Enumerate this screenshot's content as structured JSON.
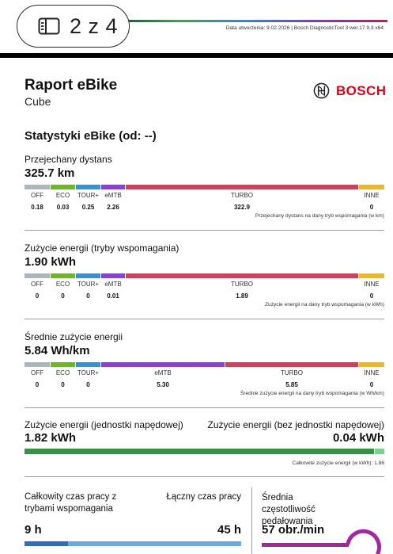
{
  "viewer": {
    "page_indicator": "2 z 4",
    "pages_icon": "sidebar-pages-icon"
  },
  "header": {
    "meta": "Data utworzenia: 9.02.2026 | Bosch DiagnosticTool 3 wer.17.9.3 x64"
  },
  "report": {
    "title": "Raport eBike",
    "subtitle": "Cube",
    "brand": "BOSCH",
    "brand_logo_icon": "bosch-armature-logo-icon"
  },
  "section": {
    "title": "Statystyki eBike (od: --)"
  },
  "colors": {
    "off": "#b2b5b8",
    "eco": "#6cb52d",
    "tour": "#3b8fd3",
    "emtb": "#8f3fd1",
    "turbo": "#d43f5b",
    "inne": "#e8b92b",
    "green_dark": "#3f8e47",
    "green_light": "#7cd094",
    "blue_dark": "#2f6fb3",
    "blue_light": "#6ea9e0",
    "purple": "#a2289e"
  },
  "distance": {
    "label": "Przejechany dystans",
    "value": "325.7 km",
    "modes": [
      {
        "name": "OFF",
        "value": "0.18"
      },
      {
        "name": "ECO",
        "value": "0.03"
      },
      {
        "name": "TOUR+",
        "value": "0.25"
      },
      {
        "name": "eMTB",
        "value": "2.26"
      },
      {
        "name": "TURBO",
        "value": "322.9"
      },
      {
        "name": "INNE",
        "value": "0"
      }
    ],
    "note": "Przejechany dystans na dany tryb wspomagania (w km)"
  },
  "energy_modes": {
    "label": "Zużycie energii (tryby wspomagania)",
    "value": "1.90 kWh",
    "modes": [
      {
        "name": "OFF",
        "value": "0"
      },
      {
        "name": "ECO",
        "value": "0"
      },
      {
        "name": "TOUR+",
        "value": "0"
      },
      {
        "name": "eMTB",
        "value": "0.01"
      },
      {
        "name": "TURBO",
        "value": "1.89"
      },
      {
        "name": "INNE",
        "value": "0"
      }
    ],
    "note": "Zużycie energii na dany tryb wspomagania (w kWh)"
  },
  "avg_energy": {
    "label": "Średnie zużycie energii",
    "value": "5.84 Wh/km",
    "modes": [
      {
        "name": "OFF",
        "value": "0"
      },
      {
        "name": "ECO",
        "value": "0"
      },
      {
        "name": "TOUR+",
        "value": "0"
      },
      {
        "name": "eMTB",
        "value": "5.30"
      },
      {
        "name": "TURBO",
        "value": "5.85"
      },
      {
        "name": "INNE",
        "value": "0"
      }
    ],
    "note": "Średnie zużycie energii na dany tryb wspomagania (w Wh/km)"
  },
  "energy_units": {
    "with_label": "Zużycie energii (jednostki napędowej)",
    "with_value": "1.82 kWh",
    "without_label": "Zużycie energii (bez jednostki napędowej)",
    "without_value": "0.04 kWh",
    "note": "Całkowite zużycie energii (w  kWh): 1.86"
  },
  "time": {
    "assist_label": "Całkowity czas pracy z trybami wspomagania",
    "assist_value": "9 h",
    "total_label": "Łączny czas pracy",
    "total_value": "45 h"
  },
  "cadence": {
    "label": "Średnia częstotliwość pedałowania",
    "value": "57 obr./min"
  }
}
